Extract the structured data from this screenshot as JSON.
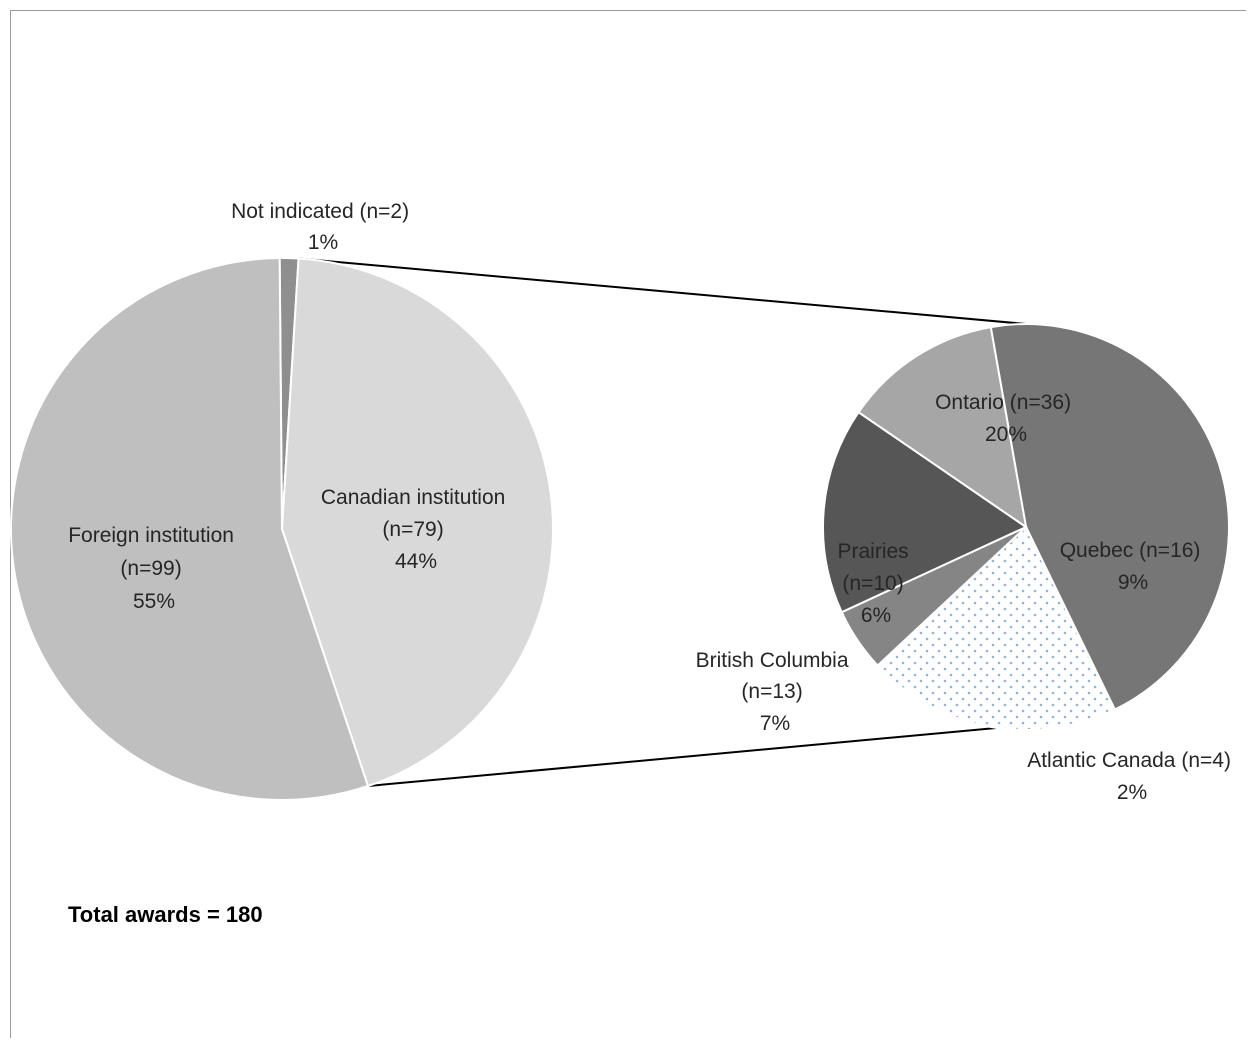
{
  "chart_data": [
    {
      "type": "pie",
      "title": "",
      "slices": [
        {
          "name": "Not indicated",
          "n_label": "(n=2)",
          "value": 2,
          "pct_label": "1%",
          "color": "#8f8f8f"
        },
        {
          "name": "Canadian institution",
          "n_label": "(n=79)",
          "value": 79,
          "pct_label": "44%",
          "color": "#d9d9d9"
        },
        {
          "name": "Foreign institution",
          "n_label": "(n=99)",
          "value": 99,
          "pct_label": "55%",
          "color": "#bfbfbf"
        }
      ]
    },
    {
      "type": "pie",
      "title": "",
      "breakdown_of": "Canadian institution",
      "slices": [
        {
          "name": "Ontario",
          "n_label": "(n=36)",
          "value": 36,
          "pct_label": "20%",
          "color": "#767676"
        },
        {
          "name": "Quebec",
          "n_label": "(n=16)",
          "value": 16,
          "pct_label": "9%",
          "color": "#ffffff",
          "pattern": "dots",
          "pattern_color": "#8fb4e3"
        },
        {
          "name": "Atlantic Canada",
          "n_label": "(n=4)",
          "value": 4,
          "pct_label": "2%",
          "color": "#858585"
        },
        {
          "name": "British Columbia",
          "n_label": "(n=13)",
          "value": 13,
          "pct_label": "7%",
          "color": "#565656"
        },
        {
          "name": "Prairies",
          "n_label": "(n=10)",
          "value": 10,
          "pct_label": "6%",
          "color": "#a6a6a6"
        }
      ]
    }
  ],
  "total_label": "Total awards = 180"
}
